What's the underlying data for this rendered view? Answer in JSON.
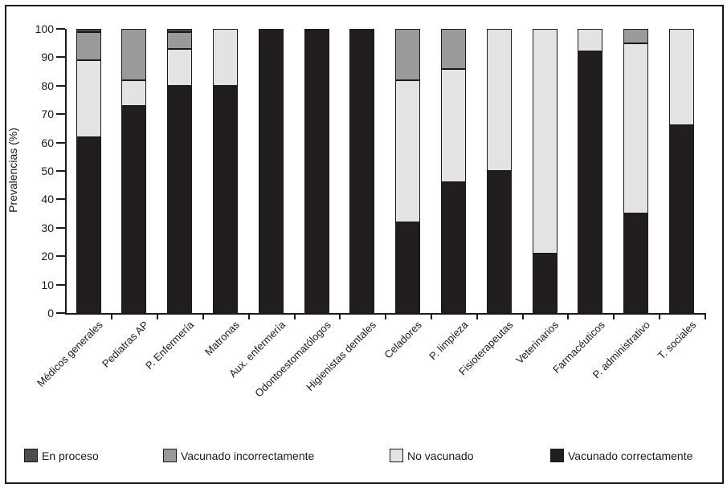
{
  "figure": {
    "background": "#ffffff",
    "border_color": "#1a1a1a",
    "text_color": "#1a1a1a"
  },
  "chart_data": {
    "type": "bar",
    "stacked": true,
    "title": "",
    "xlabel": "",
    "ylabel": "Prevalencias (%)",
    "ylim": [
      0,
      100
    ],
    "yticks": [
      0,
      10,
      20,
      30,
      40,
      50,
      60,
      70,
      80,
      90,
      100
    ],
    "grid": false,
    "legend_position": "bottom",
    "categories": [
      "Médicos generales",
      "Pediatras AP",
      "P. Enfermería",
      "Matronas",
      "Aux. enfermería",
      "Odontoestomatólogos",
      "Higienistas dentales",
      "Celadores",
      "P. limpieza",
      "Fisioterapeutas",
      "Veterinarios",
      "Farmacéuticos",
      "P. administrativo",
      "T. sociales"
    ],
    "series": [
      {
        "name": "Vacunado correctamente",
        "color": "#221e1f",
        "values": [
          62,
          73,
          80,
          80,
          100,
          100,
          100,
          32,
          46,
          50,
          21,
          92,
          35,
          66
        ]
      },
      {
        "name": "No vacunado",
        "color": "#e3e3e3",
        "values": [
          27,
          9,
          13,
          20,
          0,
          0,
          0,
          50,
          40,
          50,
          79,
          8,
          60,
          34
        ]
      },
      {
        "name": "Vacunado incorrectamente",
        "color": "#9a9a9a",
        "values": [
          10,
          18,
          6,
          0,
          0,
          0,
          0,
          18,
          14,
          0,
          0,
          0,
          5,
          0
        ]
      },
      {
        "name": "En proceso",
        "color": "#4d4d4d",
        "values": [
          1,
          0,
          1,
          0,
          0,
          0,
          0,
          0,
          0,
          0,
          0,
          0,
          0,
          0
        ]
      }
    ],
    "legend_items": [
      {
        "label": "En proceso",
        "color": "#4d4d4d"
      },
      {
        "label": "Vacunado incorrectamente",
        "color": "#9a9a9a"
      },
      {
        "label": "No vacunado",
        "color": "#e3e3e3"
      },
      {
        "label": "Vacunado correctamente",
        "color": "#221e1f"
      }
    ]
  }
}
